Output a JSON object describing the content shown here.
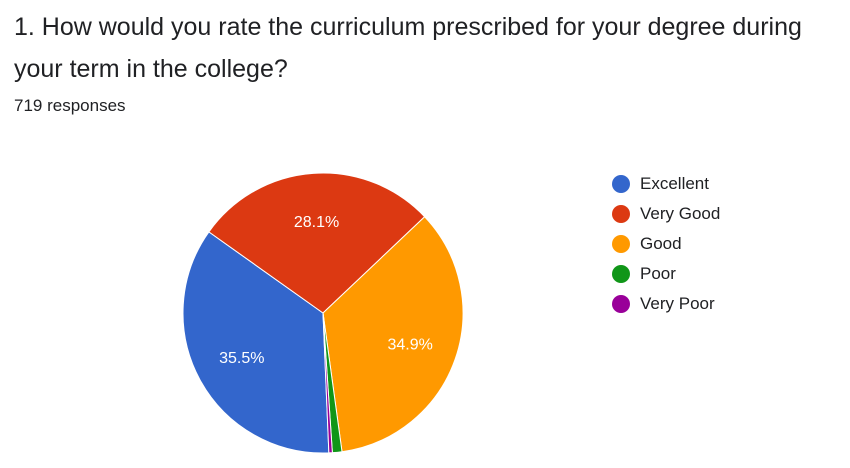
{
  "question": "1. How would you rate the curriculum prescribed for your degree during your term in the college?",
  "response_count": "719 responses",
  "chart_data": {
    "type": "pie",
    "title": "1. How would you rate the curriculum prescribed for your degree during your term in the college?",
    "categories": [
      "Excellent",
      "Very Good",
      "Good",
      "Poor",
      "Very Poor"
    ],
    "values": [
      35.5,
      28.1,
      34.9,
      1.1,
      0.4
    ],
    "data_labels": [
      "35.5%",
      "28.1%",
      "34.9%",
      "",
      ""
    ],
    "colors": [
      "#3366cc",
      "#dc3912",
      "#ff9900",
      "#109618",
      "#990099"
    ],
    "legend_position": "right"
  }
}
